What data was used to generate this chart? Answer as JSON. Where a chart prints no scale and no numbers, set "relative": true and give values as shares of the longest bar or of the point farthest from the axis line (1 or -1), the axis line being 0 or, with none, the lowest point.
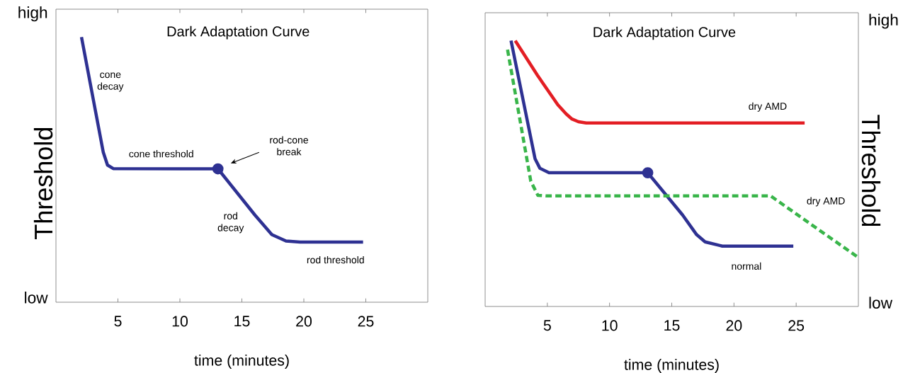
{
  "chart_data": [
    {
      "type": "line",
      "title": "Dark Adaptation Curve",
      "xlabel": "time (minutes)",
      "ylabel": "Threshold",
      "relative": true,
      "xlim": [
        0,
        30
      ],
      "xticks": [
        5,
        10,
        15,
        20,
        25
      ],
      "series": [
        {
          "color": "#2e3192",
          "x": [
            2.06,
            3.82,
            4.16,
            4.62,
            13.07,
            16.05,
            17.42,
            18.56,
            19.7,
            24.78
          ],
          "values": [
            1.0,
            0.565,
            0.517,
            0.504,
            0.503,
            0.329,
            0.255,
            0.231,
            0.227,
            0.227
          ]
        },
        {
          "type": "scatter",
          "marker": "circle",
          "color": "#2e3192",
          "x": [
            13.07
          ],
          "values": [
            0.503
          ]
        }
      ],
      "annotations": [
        "high",
        "low",
        "cone decay",
        "cone threshold",
        "rod-cone break",
        "rod decay",
        "rod threshold"
      ]
    },
    {
      "type": "line",
      "title": "Dark Adaptation Curve",
      "xlabel": "time (minutes)",
      "ylabel": "Threshold",
      "relative": true,
      "xlim": [
        0,
        30
      ],
      "xticks": [
        5,
        10,
        15,
        20,
        25
      ],
      "series": [
        {
          "name": "dry AMD",
          "color": "#e31e24",
          "x": [
            2.42,
            4.2,
            5.84,
            6.5,
            6.98,
            7.5,
            8.12,
            25.68
          ],
          "values": [
            1.0,
            0.87,
            0.759,
            0.725,
            0.705,
            0.695,
            0.69,
            0.69
          ]
        },
        {
          "name": "normal",
          "color": "#2e3192",
          "x": [
            2.08,
            4.01,
            4.4,
            5.13,
            13.07,
            15.87,
            17.0,
            17.68,
            19.06,
            24.77
          ],
          "values": [
            1.0,
            0.556,
            0.52,
            0.503,
            0.503,
            0.344,
            0.27,
            0.243,
            0.227,
            0.227
          ]
        },
        {
          "type": "scatter",
          "marker": "circle",
          "color": "#2e3192",
          "x": [
            13.07
          ],
          "values": [
            0.503
          ]
        },
        {
          "name": "dry AMD",
          "color": "#39b54a",
          "line_style": "dashed",
          "x": [
            1.8,
            3.67,
            4.24,
            4.93,
            22.94,
            30.0
          ],
          "values": [
            0.966,
            0.471,
            0.418,
            0.416,
            0.416,
            0.184
          ]
        }
      ],
      "annotations": [
        "high",
        "low"
      ]
    }
  ]
}
